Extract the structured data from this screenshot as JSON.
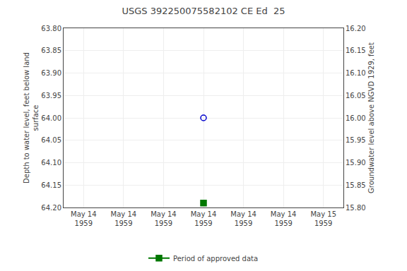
{
  "chart_data": {
    "type": "scatter",
    "title": "USGS 392250075582102 CE Ed  25",
    "y_label": "Depth to water level, feet below land\nsurface",
    "y2_label": "Groundwater level above NGVD 1929, feet",
    "categories": [
      "May 14\n1959",
      "May 14\n1959",
      "May 14\n1959",
      "May 14\n1959",
      "May 14\n1959",
      "May 14\n1959",
      "May 15\n1959"
    ],
    "series": [
      {
        "color": "#0000cc",
        "marker": "circle_open",
        "line_style": "none",
        "values": [
          null,
          null,
          null,
          64.0,
          null,
          null,
          null
        ]
      },
      {
        "name": "Period of approved data",
        "color": "#007700",
        "marker": "square",
        "line_style": "solid",
        "values": [
          null,
          null,
          null,
          64.19,
          null,
          null,
          null
        ]
      }
    ],
    "ylim": [
      64.2,
      63.8
    ],
    "yticks": [
      {
        "value": 63.8,
        "label": "63.80"
      },
      63.85,
      {
        "value": 63.9,
        "label": "63.90"
      },
      63.95,
      {
        "value": 64.0,
        "label": "64.00"
      },
      64.05,
      {
        "value": 64.1,
        "label": "64.10"
      },
      64.15,
      {
        "value": 64.2,
        "label": "64.20"
      }
    ],
    "y2lim": [
      15.8,
      16.2
    ],
    "y2ticks": [
      {
        "value": 16.2,
        "label": "16.20"
      },
      16.15,
      {
        "value": 16.1,
        "label": "16.10"
      },
      16.05,
      {
        "value": 16.0,
        "label": "16.00"
      },
      15.95,
      {
        "value": 15.9,
        "label": "15.90"
      },
      15.85,
      {
        "value": 15.8,
        "label": "15.80"
      }
    ],
    "grid": true,
    "legend": "bottom"
  }
}
